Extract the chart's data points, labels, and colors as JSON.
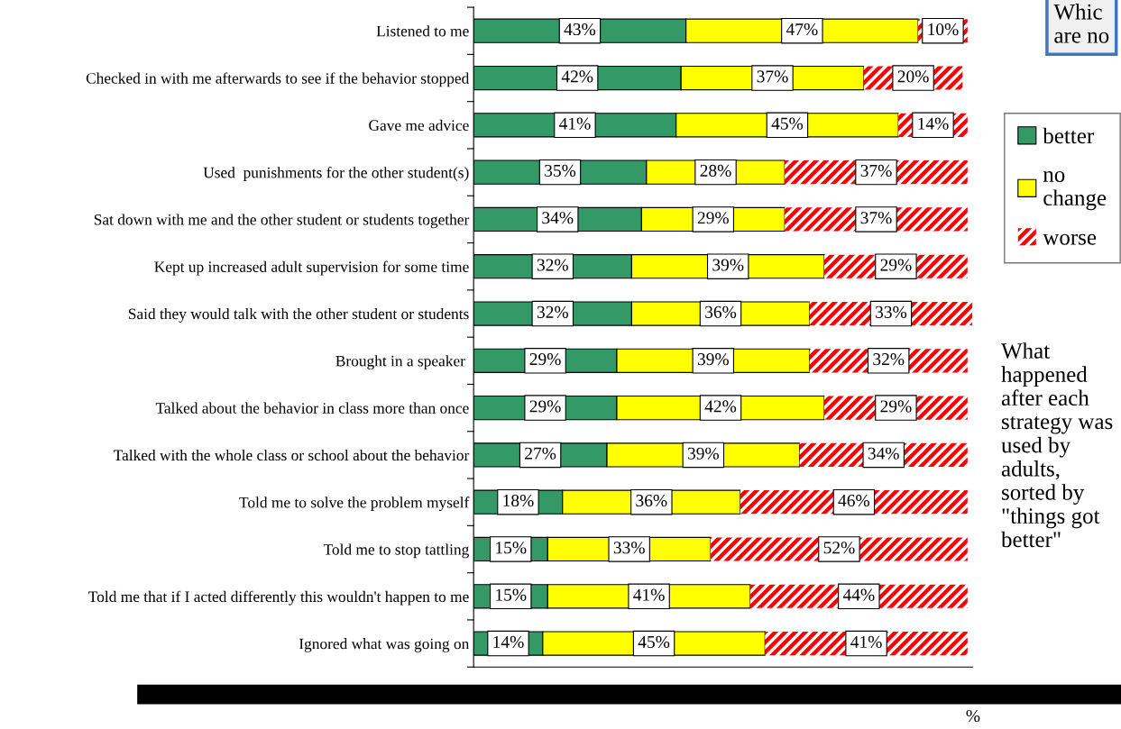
{
  "chart_data": {
    "type": "bar",
    "orientation": "horizontal",
    "stacked": true,
    "legend": "right",
    "tick_labels": "y",
    "xlabel": "%",
    "categories": [
      "Listened to me",
      "Checked in with me afterwards to see if the behavior stopped",
      "Gave me advice",
      "Used  punishments for the other student(s)",
      "Sat down with me and the other student or students together",
      "Kept up increased adult supervision for some time",
      "Said they would talk with the other student or students",
      "Brought in a speaker ",
      "Talked about the behavior in class more than once",
      "Talked with the whole class or school about the behavior",
      "Told me to solve the problem myself",
      "Told me to stop tattling",
      "Told me that if I acted differently this wouldn't happen to me",
      "Ignored what was going on"
    ],
    "series": [
      {
        "name": "better",
        "color": "#339966",
        "values": [
          43,
          42,
          41,
          35,
          34,
          32,
          32,
          29,
          29,
          27,
          18,
          15,
          15,
          14
        ],
        "value_labels": [
          "43%",
          "42%",
          "41%",
          "35%",
          "34%",
          "32%",
          "32%",
          "29%",
          "29%",
          "27%",
          "18%",
          "15%",
          "15%",
          "14%"
        ]
      },
      {
        "name": "no\nchange",
        "color": "#ffff00",
        "values": [
          47,
          37,
          45,
          28,
          29,
          39,
          36,
          39,
          42,
          39,
          36,
          33,
          41,
          45
        ],
        "value_labels": [
          "47%",
          "37%",
          "45%",
          "28%",
          "29%",
          "39%",
          "36%",
          "39%",
          "42%",
          "39%",
          "36%",
          "33%",
          "41%",
          "45%"
        ]
      },
      {
        "name": "worse",
        "color": "#ff0000",
        "values": [
          10,
          20,
          14,
          37,
          37,
          29,
          33,
          32,
          29,
          34,
          46,
          52,
          44,
          41
        ],
        "value_labels": [
          "10%",
          "20%",
          "14%",
          "37%",
          "37%",
          "29%",
          "33%",
          "32%",
          "29%",
          "34%",
          "46%",
          "52%",
          "44%",
          "41%"
        ]
      }
    ],
    "grid": false,
    "annotations": [
      "What happened after each strategy was used by adults, sorted by \"things got better\"",
      "Whic\nare no"
    ]
  }
}
